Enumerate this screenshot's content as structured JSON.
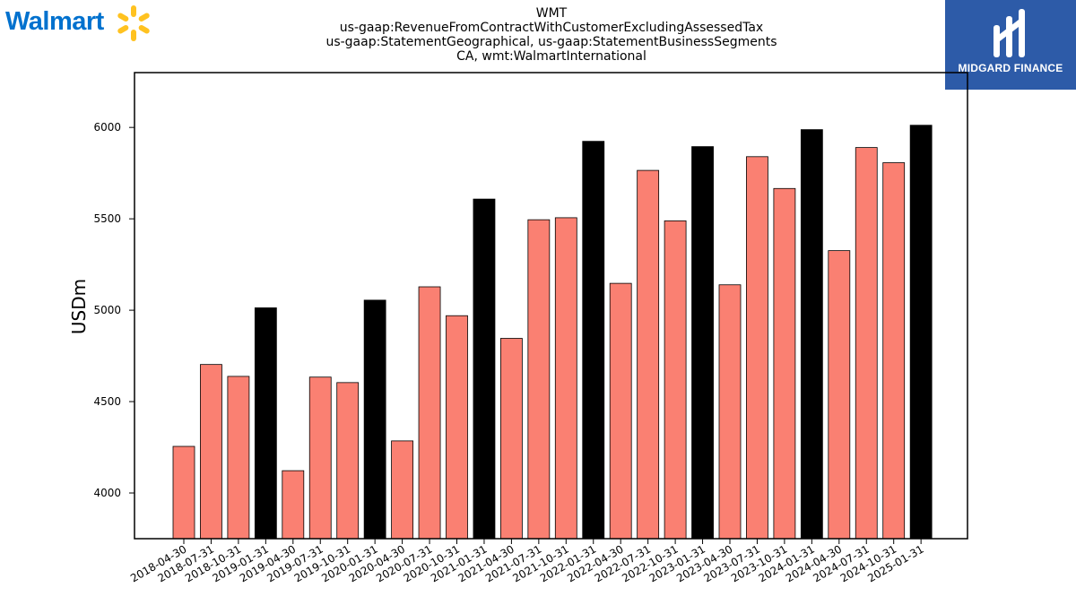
{
  "logos": {
    "left_text": "Walmart",
    "left_icon": "walmart-spark-icon",
    "right_text": "MIDGARD FINANCE",
    "right_icon": "midgard-mark-icon",
    "right_bg": "#2d5ba8"
  },
  "title_lines": [
    "WMT",
    "us-gaap:RevenueFromContractWithCustomerExcludingAssessedTax",
    "us-gaap:StatementGeographical, us-gaap:StatementBusinessSegments",
    "CA, wmt:WalmartInternational"
  ],
  "chart_data": {
    "type": "bar",
    "ylabel": "USDm",
    "xlabel": "",
    "ylim": [
      3750,
      6300
    ],
    "yticks": [
      4000,
      4500,
      5000,
      5500,
      6000
    ],
    "grid": false,
    "colors": {
      "quarter": "#fa8072",
      "fiscal_year_end": "#000000",
      "edge": "#000000"
    },
    "categories": [
      "2018-04-30",
      "2018-07-31",
      "2018-10-31",
      "2019-01-31",
      "2019-04-30",
      "2019-07-31",
      "2019-10-31",
      "2020-01-31",
      "2020-04-30",
      "2020-07-31",
      "2020-10-31",
      "2021-01-31",
      "2021-04-30",
      "2021-07-31",
      "2021-10-31",
      "2022-01-31",
      "2022-04-30",
      "2022-07-31",
      "2022-10-31",
      "2023-01-31",
      "2023-04-30",
      "2023-07-31",
      "2023-10-31",
      "2024-01-31",
      "2024-04-30",
      "2024-07-31",
      "2024-10-31",
      "2025-01-31"
    ],
    "values": [
      4255,
      4703,
      4638,
      5013,
      4122,
      4634,
      4604,
      5055,
      4285,
      5128,
      4970,
      5608,
      4846,
      5495,
      5506,
      5924,
      5147,
      5765,
      5489,
      5895,
      5139,
      5840,
      5666,
      5988,
      5326,
      5890,
      5807,
      6012
    ],
    "fiscal_year_end": [
      false,
      false,
      false,
      true,
      false,
      false,
      false,
      true,
      false,
      false,
      false,
      true,
      false,
      false,
      false,
      true,
      false,
      false,
      false,
      true,
      false,
      false,
      false,
      true,
      false,
      false,
      false,
      true
    ]
  }
}
